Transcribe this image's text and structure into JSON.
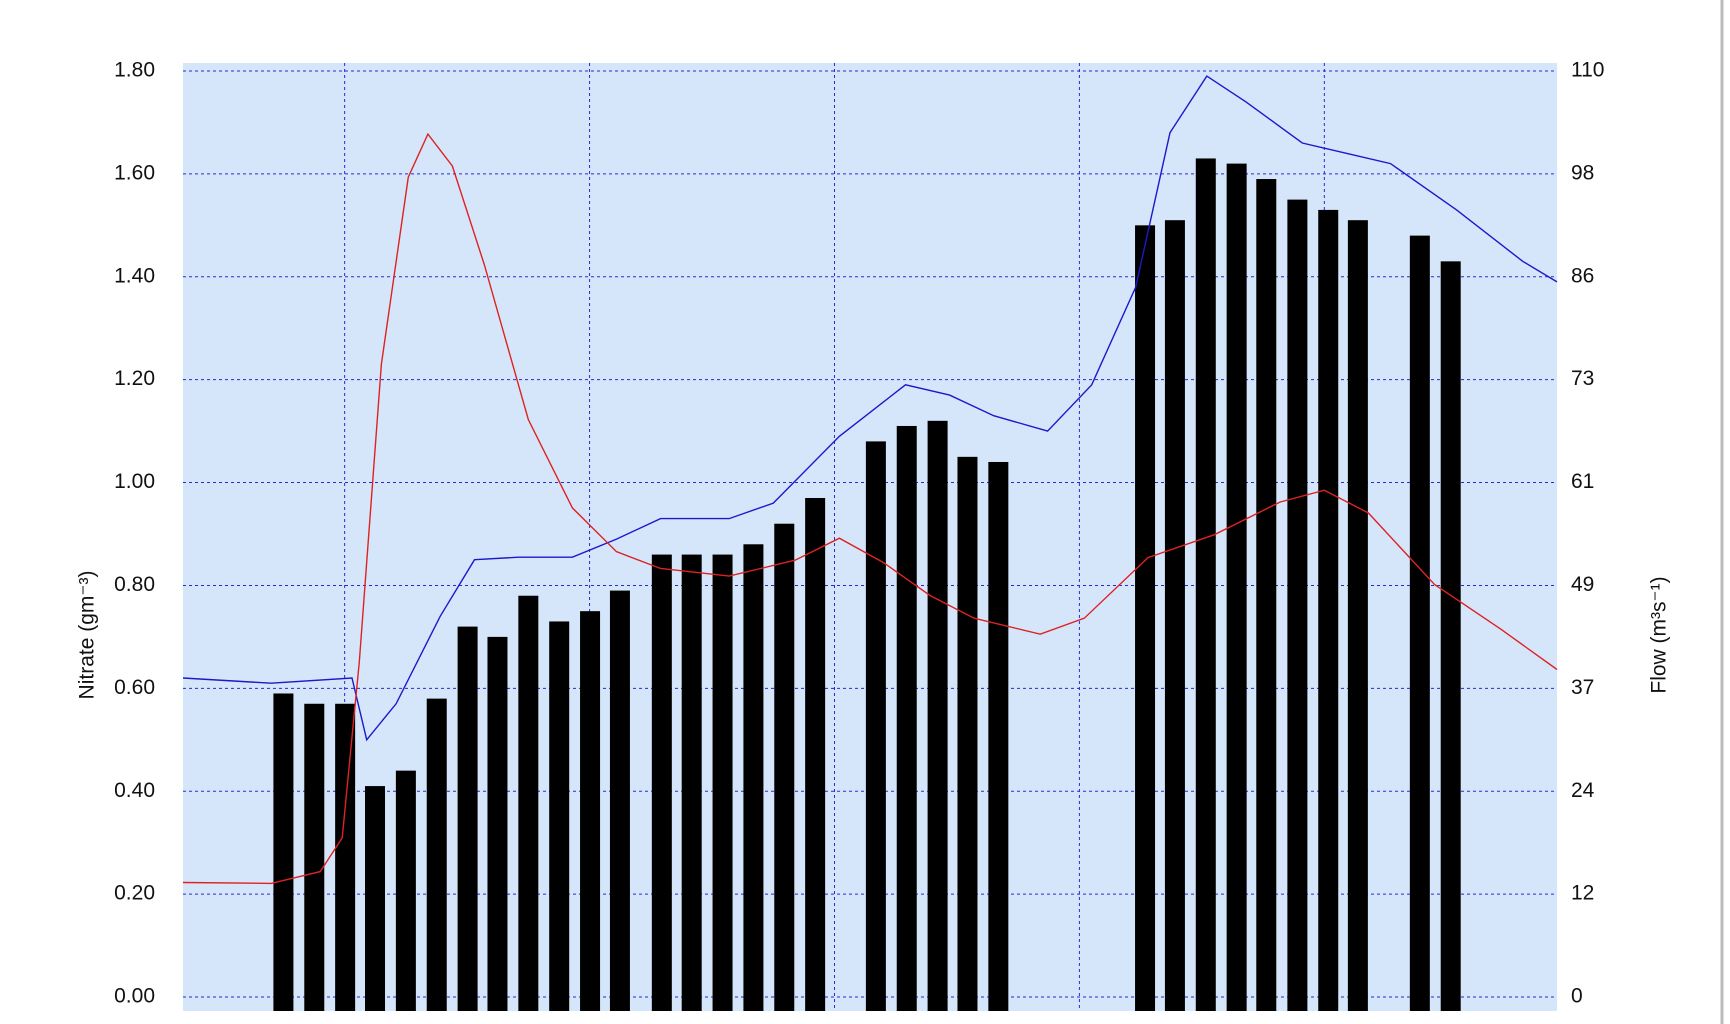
{
  "chart_data": {
    "type": "bar",
    "y_label": "Nitrate (gm⁻³)",
    "y2_label": "Flow (m³s⁻¹)",
    "xlim": [
      0,
      5.61
    ],
    "xticks": [
      0.66,
      1.66,
      2.66,
      3.66,
      4.66
    ],
    "ylim": [
      0,
      1.8
    ],
    "yticks": [
      {
        "value": 0,
        "label": "0.00"
      },
      {
        "value": 0.2,
        "label": "0.20"
      },
      {
        "value": 0.4,
        "label": "0.40"
      },
      {
        "value": 0.6,
        "label": "0.60"
      },
      {
        "value": 0.8,
        "label": "0.80"
      },
      {
        "value": 1,
        "label": "1.00"
      },
      {
        "value": 1.2,
        "label": "1.20"
      },
      {
        "value": 1.4,
        "label": "1.40"
      },
      {
        "value": 1.6,
        "label": "1.60"
      },
      {
        "value": 1.8,
        "label": "1.80"
      }
    ],
    "y2lim": [
      0,
      110
    ],
    "y2ticks": [
      0,
      {
        "value": 12.22,
        "label": "12"
      },
      {
        "value": 24.44,
        "label": "24"
      },
      {
        "value": 36.67,
        "label": "37"
      },
      {
        "value": 48.89,
        "label": "49"
      },
      {
        "value": 61.11,
        "label": "61"
      },
      {
        "value": 73.33,
        "label": "73"
      },
      {
        "value": 85.56,
        "label": "86"
      },
      {
        "value": 97.78,
        "label": "98"
      },
      110
    ],
    "grid": true,
    "background": "#d6e6fa",
    "grid_color": "#2a2ad0",
    "series": [
      {
        "type": "bar",
        "color": "#000000",
        "x": [
          0.41,
          0.536,
          0.662,
          0.784,
          0.91,
          1.036,
          1.162,
          1.284,
          1.41,
          1.536,
          1.662,
          1.784,
          1.955,
          2.077,
          2.203,
          2.329,
          2.455,
          2.581,
          2.829,
          2.955,
          3.081,
          3.203,
          3.329,
          3.928,
          4.05,
          4.176,
          4.302,
          4.423,
          4.55,
          4.676,
          4.797,
          5.05,
          5.176
        ],
        "values": [
          0.59,
          0.57,
          0.57,
          0.41,
          0.44,
          0.58,
          0.72,
          0.7,
          0.78,
          0.73,
          0.75,
          0.79,
          0.86,
          0.86,
          0.86,
          0.88,
          0.92,
          0.97,
          1.08,
          1.11,
          1.12,
          1.05,
          1.04,
          1.5,
          1.51,
          1.63,
          1.62,
          1.59,
          1.55,
          1.53,
          1.51,
          1.48,
          1.43
        ]
      },
      {
        "type": "line",
        "color": "#1a1acc",
        "x": [
          0,
          0.36,
          0.69,
          0.75,
          0.87,
          1.05,
          1.19,
          1.37,
          1.59,
          1.77,
          1.95,
          2.23,
          2.41,
          2.68,
          2.95,
          3.13,
          3.31,
          3.53,
          3.71,
          3.89,
          4.03,
          4.18,
          4.34,
          4.57,
          4.75,
          4.93,
          5.2,
          5.47,
          5.61
        ],
        "values": [
          0.62,
          0.61,
          0.62,
          0.5,
          0.57,
          0.74,
          0.85,
          0.855,
          0.855,
          0.89,
          0.93,
          0.93,
          0.96,
          1.09,
          1.19,
          1.17,
          1.13,
          1.1,
          1.19,
          1.38,
          1.68,
          1.79,
          1.74,
          1.66,
          1.64,
          1.62,
          1.53,
          1.43,
          1.39
        ]
      },
      {
        "type": "line",
        "axis": "y2",
        "color": "#dd2222",
        "x": [
          0,
          0.36,
          0.56,
          0.65,
          0.72,
          0.81,
          0.92,
          1.0,
          1.1,
          1.23,
          1.41,
          1.59,
          1.77,
          1.95,
          2.23,
          2.5,
          2.68,
          2.86,
          3.05,
          3.23,
          3.5,
          3.68,
          3.94,
          4.21,
          4.48,
          4.66,
          4.84,
          5.11,
          5.38,
          5.61
        ],
        "values": [
          13.6,
          13.5,
          14.9,
          18.9,
          39.8,
          75.2,
          97.4,
          102.5,
          98.7,
          87.0,
          68.6,
          58.1,
          52.9,
          50.9,
          50.0,
          51.9,
          54.5,
          51.6,
          47.7,
          45.0,
          43.1,
          45.0,
          52.2,
          54.9,
          58.8,
          60.2,
          57.5,
          49.0,
          43.7,
          38.9
        ]
      }
    ]
  }
}
